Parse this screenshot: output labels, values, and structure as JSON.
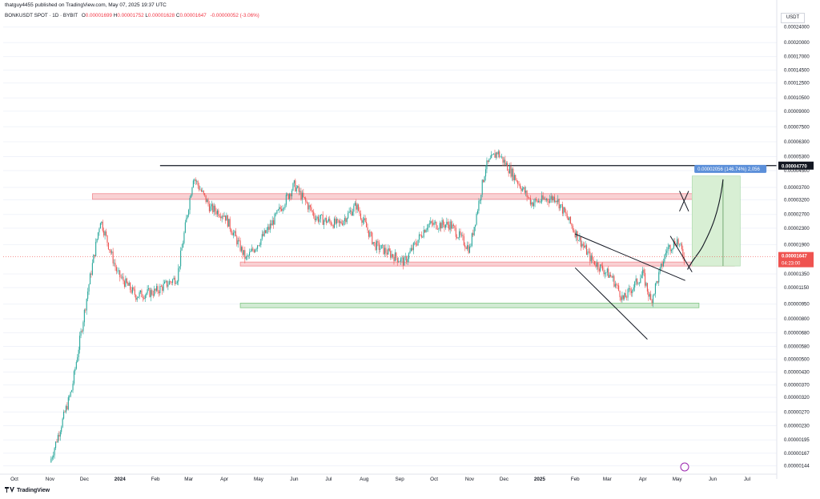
{
  "header": {
    "published_line": "thatguy4455 published on TradingView.com, May 07, 2025 19:37 UTC"
  },
  "legend": {
    "symbol": "BONKUSDT SPOT · 1D · BYBIT",
    "open_label": "O",
    "open": "0.00001699",
    "high_label": "H",
    "high": "0.00001752",
    "low_label": "L",
    "low": "0.00001628",
    "close_label": "C",
    "close": "0.00001647",
    "change": "-0.00000052 (-3.06%)"
  },
  "price_axis": {
    "unit": "USDT",
    "ticks": [
      "0.00024000",
      "0.00020000",
      "0.00017000",
      "0.00014500",
      "0.00012500",
      "0.00010500",
      "0.00009000",
      "0.00007500",
      "0.00006300",
      "0.00005300",
      "0.00004500",
      "0.00003700",
      "0.00003200",
      "0.00002700",
      "0.00002300",
      "0.00001900",
      "0.00001350",
      "0.00001150",
      "0.00000950",
      "0.00000800",
      "0.00000680",
      "0.00000580",
      "0.00000500",
      "0.00000430",
      "0.00000370",
      "0.00000320",
      "0.00000270",
      "0.00000230",
      "0.00000195",
      "0.00000167",
      "0.00000144"
    ],
    "resistance_label": "0.00004770",
    "current_price_label": "0.00001647",
    "countdown_label": "04:23:00"
  },
  "projection": {
    "label": "0.00002056 (146.74%) 2,056"
  },
  "time_axis": {
    "labels": [
      "Oct",
      "Nov",
      "Dec",
      "2024",
      "Feb",
      "Mar",
      "Apr",
      "May",
      "Jun",
      "Jul",
      "Aug",
      "Sep",
      "Oct",
      "Nov",
      "Dec",
      "2025",
      "Feb",
      "Mar",
      "Apr",
      "May",
      "Jun",
      "Jul"
    ]
  },
  "footer": {
    "brand": "TradingView"
  },
  "colors": {
    "up": "#26a69a",
    "down": "#ef5350",
    "resistance_zone": "#f7c5c8",
    "support_zone": "#c8e6c9",
    "projection_box": "#d8efd4",
    "projection_label_bg": "#5b8fd9"
  },
  "chart_data": {
    "type": "candlestick",
    "symbol": "BONKUSDT",
    "timeframe": "1D",
    "scale": "log",
    "x_range": [
      "2023-10",
      "2025-07"
    ],
    "y_range": [
      1.44e-06,
      0.00024
    ],
    "last_close": 1.647e-05,
    "horizontal_levels": [
      {
        "price": 4.77e-05,
        "label": "0.00004770",
        "style": "line"
      },
      {
        "zone": [
          3.22e-05,
          3.44e-05
        ],
        "style": "red-zone"
      },
      {
        "zone": [
          1.49e-05,
          1.55e-05
        ],
        "style": "red-zone"
      },
      {
        "zone": [
          9.1e-06,
          9.6e-06
        ],
        "style": "green-zone"
      }
    ],
    "projection_target_pct": 146.74,
    "price_path": [
      {
        "date": "2023-11-01",
        "close": 1.5e-06
      },
      {
        "date": "2023-11-20",
        "close": 3.5e-06
      },
      {
        "date": "2023-12-05",
        "close": 1.2e-05
      },
      {
        "date": "2023-12-15",
        "close": 2.55e-05
      },
      {
        "date": "2023-12-30",
        "close": 1.35e-05
      },
      {
        "date": "2024-01-15",
        "close": 1.05e-05
      },
      {
        "date": "2024-02-01",
        "close": 1.1e-05
      },
      {
        "date": "2024-02-20",
        "close": 1.3e-05
      },
      {
        "date": "2024-03-05",
        "close": 4.2e-05
      },
      {
        "date": "2024-03-20",
        "close": 2.9e-05
      },
      {
        "date": "2024-04-01",
        "close": 2.7e-05
      },
      {
        "date": "2024-04-20",
        "close": 1.6e-05
      },
      {
        "date": "2024-05-10",
        "close": 2.3e-05
      },
      {
        "date": "2024-06-01",
        "close": 3.8e-05
      },
      {
        "date": "2024-06-20",
        "close": 2.6e-05
      },
      {
        "date": "2024-07-10",
        "close": 2.4e-05
      },
      {
        "date": "2024-07-25",
        "close": 3e-05
      },
      {
        "date": "2024-08-10",
        "close": 1.9e-05
      },
      {
        "date": "2024-09-05",
        "close": 1.55e-05
      },
      {
        "date": "2024-09-25",
        "close": 2.4e-05
      },
      {
        "date": "2024-10-15",
        "close": 2.4e-05
      },
      {
        "date": "2024-11-01",
        "close": 1.8e-05
      },
      {
        "date": "2024-11-15",
        "close": 4.7e-05
      },
      {
        "date": "2024-11-25",
        "close": 5.6e-05
      },
      {
        "date": "2024-12-10",
        "close": 4.2e-05
      },
      {
        "date": "2024-12-25",
        "close": 3.1e-05
      },
      {
        "date": "2025-01-15",
        "close": 3.3e-05
      },
      {
        "date": "2025-02-01",
        "close": 2.2e-05
      },
      {
        "date": "2025-02-15",
        "close": 1.6e-05
      },
      {
        "date": "2025-03-05",
        "close": 1.3e-05
      },
      {
        "date": "2025-03-15",
        "close": 1e-05
      },
      {
        "date": "2025-04-01",
        "close": 1.35e-05
      },
      {
        "date": "2025-04-08",
        "close": 9.8e-06
      },
      {
        "date": "2025-04-22",
        "close": 1.8e-05
      },
      {
        "date": "2025-05-01",
        "close": 2e-05
      },
      {
        "date": "2025-05-07",
        "close": 1.647e-05
      }
    ]
  }
}
